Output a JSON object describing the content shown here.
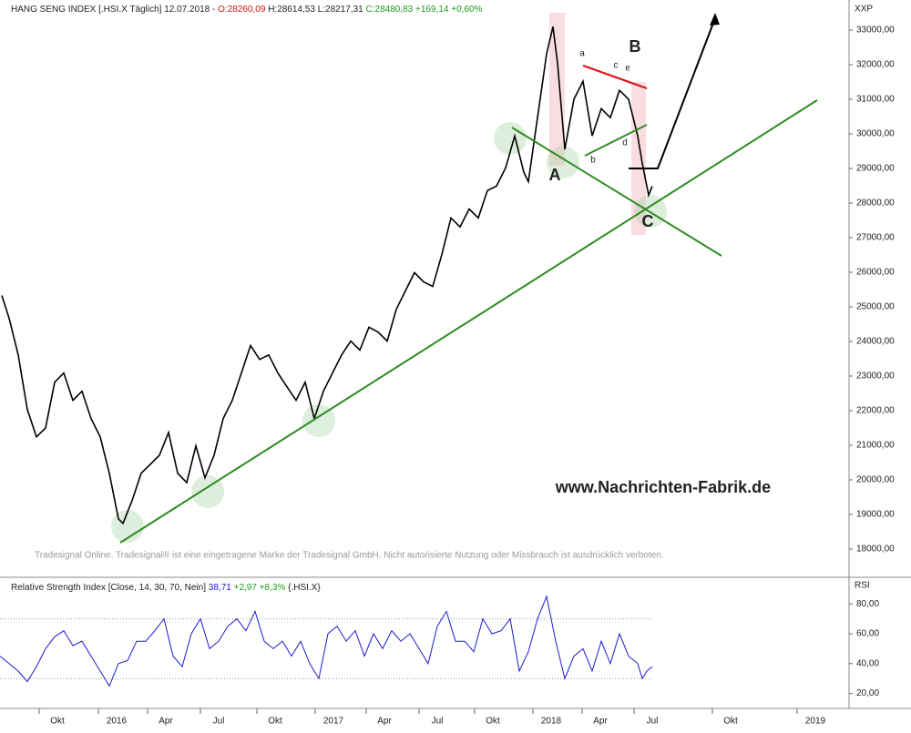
{
  "chart_data": [
    {
      "type": "line",
      "title": "HANG SENG INDEX [.HSI.X  Täglich] 12.07.2018 -",
      "quote": [
        "O:28260,09",
        "H:28614,53",
        "L:28217,31",
        "C:28480,83 +169,14 +0,60%"
      ],
      "axis_label": "XXP",
      "annotations": [
        "A",
        "B",
        "C",
        "a",
        "b",
        "c",
        "d",
        "e"
      ],
      "watermark": "www.Nachrichten-Fabrik.de",
      "notice": "Tradesignal Online. Tradesignal® ist eine eingetragene Marke der Tradesignal GmbH. Nicht autorisierte Nutzung oder Missbrauch ist ausdrücklich verboten.",
      "xlim": [
        0,
        932
      ],
      "ylim": [
        17235,
        33765
      ],
      "yticks": [
        {
          "value": 18000,
          "label": "18000,00"
        },
        {
          "value": 19000,
          "label": "19000,00"
        },
        {
          "value": 20000,
          "label": "20000,00"
        },
        {
          "value": 21000,
          "label": "21000,00"
        },
        {
          "value": 22000,
          "label": "22000,00"
        },
        {
          "value": 23000,
          "label": "23000,00"
        },
        {
          "value": 24000,
          "label": "24000,00"
        },
        {
          "value": 25000,
          "label": "25000,00"
        },
        {
          "value": 26000,
          "label": "26000,00"
        },
        {
          "value": 27000,
          "label": "27000,00"
        },
        {
          "value": 28000,
          "label": "28000,00"
        },
        {
          "value": 29000,
          "label": "29000,00"
        },
        {
          "value": 30000,
          "label": "30000,00"
        },
        {
          "value": 31000,
          "label": "31000,00"
        },
        {
          "value": 32000,
          "label": "32000,00"
        },
        {
          "value": 33000,
          "label": "33000,00"
        }
      ],
      "series": [
        {
          "name": "HANG SENG INDEX",
          "color": "#000000",
          "x": [
            2,
            10,
            20,
            30,
            40,
            50,
            60,
            70,
            80,
            90,
            100,
            110,
            120,
            130,
            135,
            145,
            155,
            165,
            175,
            185,
            195,
            205,
            215,
            225,
            235,
            245,
            255,
            265,
            275,
            285,
            295,
            305,
            315,
            325,
            335,
            345,
            355,
            365,
            375,
            385,
            395,
            405,
            415,
            425,
            435,
            445,
            455,
            465,
            475,
            485,
            495,
            505,
            515,
            525,
            535,
            545,
            555,
            565,
            575,
            580,
            590,
            600,
            607,
            612,
            620,
            630,
            640,
            650,
            660,
            670,
            680,
            690,
            700,
            705,
            712,
            716
          ],
          "values": [
            25330,
            24670,
            23610,
            22030,
            21240,
            21500,
            22820,
            23090,
            22300,
            22560,
            21770,
            21240,
            20190,
            18870,
            18740,
            19400,
            20190,
            20450,
            20710,
            21370,
            20190,
            19920,
            20980,
            20060,
            20710,
            21770,
            22300,
            23090,
            23880,
            23480,
            23610,
            23090,
            22690,
            22300,
            22820,
            21770,
            22560,
            23090,
            23610,
            24010,
            23750,
            24410,
            24270,
            24010,
            24930,
            25460,
            25990,
            25720,
            25590,
            26510,
            27570,
            27310,
            27830,
            27570,
            28360,
            28490,
            29020,
            29940,
            28890,
            28620,
            30470,
            32310,
            33100,
            32050,
            29550,
            31000,
            31520,
            29940,
            30730,
            30470,
            31260,
            31000,
            29940,
            29150,
            28230,
            28490
          ]
        }
      ]
    },
    {
      "type": "line",
      "title": "Relative Strength Index [Close, 14, 30, 70, Nein]",
      "quote": [
        "38,71",
        "+2,97 +8,3%",
        "{.HSI.X}"
      ],
      "axis_label": "RSI",
      "levels": [
        30,
        70
      ],
      "xlim": [
        0,
        932
      ],
      "ylim": [
        10,
        96
      ],
      "yticks": [
        {
          "value": 20,
          "label": "20,00"
        },
        {
          "value": 40,
          "label": "40,00"
        },
        {
          "value": 60,
          "label": "60,00"
        },
        {
          "value": 80,
          "label": "80,00"
        }
      ],
      "xticks": [
        {
          "value": 63,
          "label": "Okt"
        },
        {
          "value": 128,
          "label": "2016"
        },
        {
          "value": 182,
          "label": "Apr"
        },
        {
          "value": 240,
          "label": "Jul"
        },
        {
          "value": 302,
          "label": "Okt"
        },
        {
          "value": 366,
          "label": "2017"
        },
        {
          "value": 422,
          "label": "Apr"
        },
        {
          "value": 480,
          "label": "Jul"
        },
        {
          "value": 541,
          "label": "Okt"
        },
        {
          "value": 605,
          "label": "2018"
        },
        {
          "value": 659,
          "label": "Apr"
        },
        {
          "value": 716,
          "label": "Jul"
        },
        {
          "value": 802,
          "label": "Okt"
        },
        {
          "value": 895,
          "label": "2019"
        }
      ],
      "series": [
        {
          "name": "RSI",
          "color": "#1a1ad0",
          "x": [
            0,
            10,
            20,
            30,
            40,
            50,
            60,
            70,
            80,
            90,
            100,
            110,
            120,
            130,
            140,
            150,
            160,
            170,
            180,
            190,
            200,
            210,
            220,
            230,
            240,
            250,
            260,
            270,
            280,
            290,
            300,
            310,
            320,
            330,
            340,
            350,
            360,
            370,
            380,
            390,
            400,
            410,
            420,
            430,
            440,
            450,
            460,
            470,
            480,
            490,
            500,
            510,
            520,
            530,
            540,
            550,
            560,
            570,
            580,
            590,
            600,
            610,
            620,
            630,
            640,
            650,
            660,
            670,
            680,
            690,
            700,
            705,
            710,
            716
          ],
          "values": [
            45,
            40,
            35,
            28,
            38,
            50,
            58,
            62,
            52,
            55,
            45,
            35,
            25,
            40,
            42,
            55,
            55,
            62,
            70,
            45,
            38,
            60,
            70,
            50,
            55,
            65,
            70,
            62,
            75,
            55,
            50,
            55,
            45,
            55,
            40,
            30,
            60,
            65,
            55,
            62,
            45,
            60,
            50,
            62,
            55,
            60,
            50,
            40,
            65,
            75,
            55,
            55,
            48,
            70,
            60,
            62,
            70,
            35,
            48,
            70,
            85,
            55,
            30,
            45,
            50,
            35,
            55,
            40,
            60,
            45,
            40,
            30,
            35,
            38
          ]
        }
      ]
    }
  ]
}
